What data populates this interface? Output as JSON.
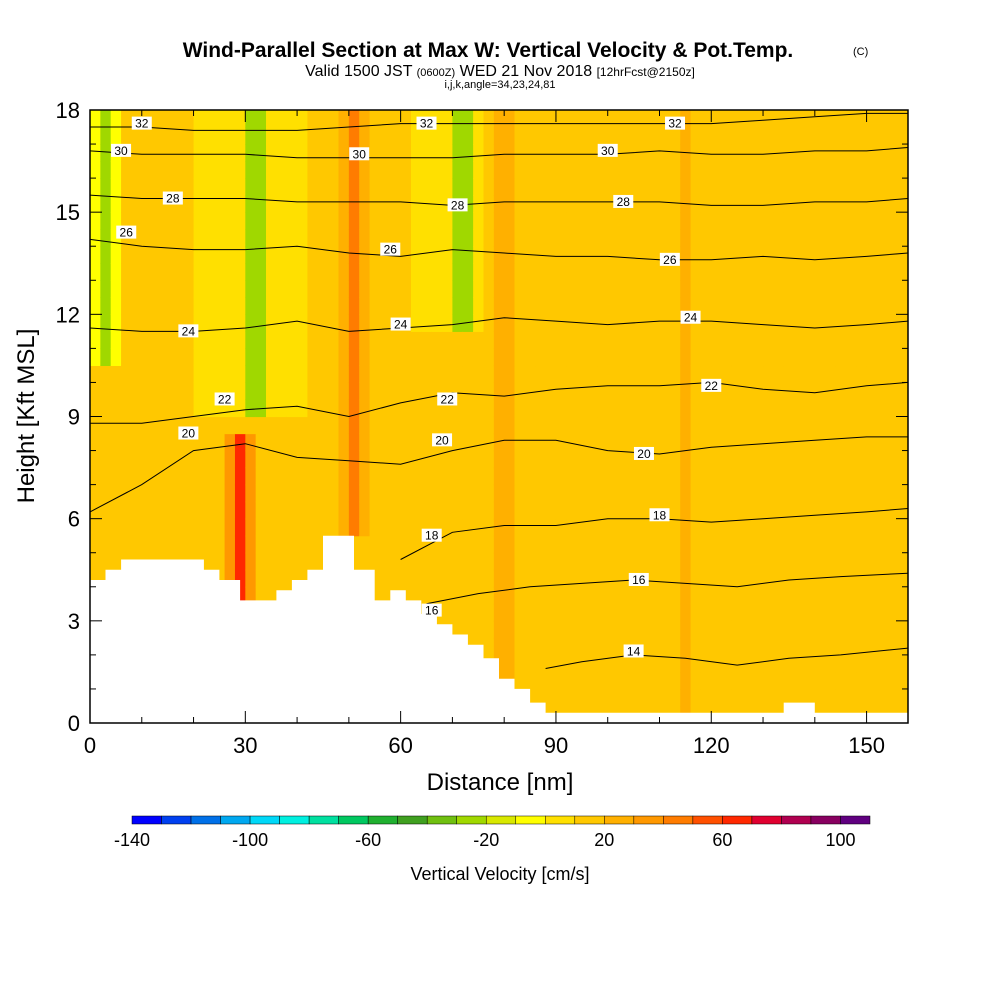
{
  "title": {
    "main": "Wind-Parallel Section at Max W: Vertical Velocity & Pot.Temp.",
    "main_suffix": "(C)",
    "valid_prefix": "Valid 1500 JST",
    "valid_utc": "(0600Z)",
    "valid_date": "WED 21 Nov 2018",
    "forecast": "[12hrFcst@2150z]",
    "indices": "i,j,k,angle=34,23,24,81"
  },
  "chart_data": {
    "type": "heatmap",
    "xlabel": "Distance [nm]",
    "ylabel": "Height [Kft MSL]",
    "xlim": [
      0,
      158
    ],
    "ylim": [
      0,
      18
    ],
    "x_ticks": [
      0,
      30,
      60,
      90,
      120,
      150
    ],
    "x_tick_labels": [
      "0",
      "30",
      "60",
      "90",
      "120",
      "150"
    ],
    "y_ticks": [
      0,
      3,
      6,
      9,
      12,
      15,
      18
    ],
    "y_tick_labels": [
      "0",
      "3",
      "6",
      "9",
      "12",
      "15",
      "18"
    ],
    "colorbar": {
      "title": "Vertical Velocity [cm/s]",
      "min": -140,
      "max": 110,
      "step": 10,
      "tick_values": [
        -140,
        -100,
        -60,
        -20,
        20,
        60,
        100
      ],
      "tick_labels": [
        "-140",
        "-100",
        "-60",
        "-20",
        "20",
        "60",
        "100"
      ],
      "colors": [
        "#0000ff",
        "#0040f0",
        "#0070e8",
        "#00a8f0",
        "#00d8f8",
        "#00f0e0",
        "#00e0a0",
        "#00c860",
        "#20b030",
        "#40a020",
        "#70c010",
        "#a0d800",
        "#d8e800",
        "#ffff00",
        "#ffe000",
        "#ffc800",
        "#ffb000",
        "#ff9800",
        "#ff7c00",
        "#ff5000",
        "#ff2800",
        "#e00030",
        "#b00050",
        "#880060",
        "#600080"
      ]
    },
    "terrain": {
      "x": [
        0,
        3,
        3,
        6,
        6,
        22,
        22,
        25,
        25,
        29,
        29,
        36,
        36,
        39,
        39,
        42,
        42,
        45,
        45,
        51,
        51,
        55,
        55,
        58,
        58,
        61,
        61,
        64,
        64,
        67,
        67,
        70,
        70,
        73,
        73,
        76,
        76,
        79,
        79,
        82,
        82,
        85,
        85,
        88,
        88,
        134,
        134,
        140,
        140,
        158
      ],
      "y": [
        4.2,
        4.2,
        4.5,
        4.5,
        4.8,
        4.8,
        4.5,
        4.5,
        4.2,
        4.2,
        3.6,
        3.6,
        3.9,
        3.9,
        4.2,
        4.2,
        4.5,
        4.5,
        5.5,
        5.5,
        4.5,
        4.5,
        3.6,
        3.6,
        3.9,
        3.9,
        3.6,
        3.6,
        3.2,
        3.2,
        2.9,
        2.9,
        2.6,
        2.6,
        2.3,
        2.3,
        1.9,
        1.9,
        1.3,
        1.3,
        1.0,
        1.0,
        0.6,
        0.6,
        0.3,
        0.3,
        0.6,
        0.6,
        0.3,
        0.3
      ]
    },
    "vertical_velocity": {
      "background": 10,
      "features": [
        {
          "x": 3,
          "ybot": 10.5,
          "ytop": 18,
          "w": -30
        },
        {
          "x": 8,
          "ybot": 5,
          "ytop": 18,
          "w": 20
        },
        {
          "x": 29,
          "ybot": 3.5,
          "ytop": 8.5,
          "w": 60
        },
        {
          "x": 32,
          "ybot": 9,
          "ytop": 18,
          "w": -30
        },
        {
          "x": 51,
          "ybot": 5.5,
          "ytop": 18,
          "w": 45
        },
        {
          "x": 72,
          "ybot": 11.5,
          "ytop": 18,
          "w": -30
        },
        {
          "x": 80,
          "ybot": 0.5,
          "ytop": 18,
          "w": 30
        },
        {
          "x": 88,
          "ybot": 0,
          "ytop": 18,
          "w": 15
        },
        {
          "x": 104,
          "ybot": 4,
          "ytop": 18,
          "w": 15
        },
        {
          "x": 115,
          "ybot": 0,
          "ytop": 18,
          "w": 20
        },
        {
          "x": 126,
          "ybot": 0,
          "ytop": 14,
          "w": 15
        },
        {
          "x": 138,
          "ybot": 1,
          "ytop": 18,
          "w": 20
        },
        {
          "x": 152,
          "ybot": 0,
          "ytop": 18,
          "w": 15
        }
      ]
    },
    "potential_temperature": [
      {
        "value": 14,
        "x": [
          88,
          95,
          105,
          115,
          125,
          135,
          145,
          158
        ],
        "y": [
          1.6,
          1.8,
          2.0,
          1.9,
          1.7,
          1.9,
          2.0,
          2.2
        ],
        "labels": [
          [
            105,
            2.1
          ]
        ]
      },
      {
        "value": 16,
        "x": [
          65,
          75,
          85,
          95,
          105,
          115,
          125,
          135,
          145,
          158
        ],
        "y": [
          3.5,
          3.8,
          4.0,
          4.1,
          4.2,
          4.1,
          4.0,
          4.2,
          4.3,
          4.4
        ],
        "labels": [
          [
            66,
            3.3
          ],
          [
            106,
            4.2
          ]
        ]
      },
      {
        "value": 18,
        "x": [
          60,
          70,
          80,
          90,
          100,
          110,
          120,
          130,
          140,
          150,
          158
        ],
        "y": [
          4.8,
          5.6,
          5.8,
          5.8,
          6.0,
          6.0,
          5.9,
          6.0,
          6.1,
          6.2,
          6.3
        ],
        "labels": [
          [
            66,
            5.5
          ],
          [
            110,
            6.1
          ]
        ]
      },
      {
        "value": 20,
        "x": [
          0,
          10,
          20,
          30,
          40,
          50,
          60,
          70,
          80,
          90,
          100,
          110,
          120,
          130,
          140,
          150,
          158
        ],
        "y": [
          6.2,
          7.0,
          8.0,
          8.2,
          7.8,
          7.7,
          7.6,
          8.0,
          8.3,
          8.3,
          8.0,
          7.9,
          8.1,
          8.2,
          8.3,
          8.4,
          8.4
        ],
        "labels": [
          [
            19,
            8.5
          ],
          [
            68,
            8.3
          ],
          [
            107,
            7.9
          ]
        ]
      },
      {
        "value": 22,
        "x": [
          0,
          10,
          20,
          30,
          40,
          50,
          60,
          70,
          80,
          90,
          100,
          110,
          120,
          130,
          140,
          150,
          158
        ],
        "y": [
          8.8,
          8.8,
          9.0,
          9.2,
          9.3,
          9.0,
          9.4,
          9.7,
          9.6,
          9.8,
          9.9,
          9.9,
          10.0,
          9.8,
          9.7,
          9.9,
          10.0
        ],
        "labels": [
          [
            26,
            9.5
          ],
          [
            69,
            9.5
          ],
          [
            120,
            9.9
          ]
        ]
      },
      {
        "value": 24,
        "x": [
          0,
          10,
          20,
          30,
          40,
          50,
          60,
          70,
          80,
          90,
          100,
          110,
          120,
          130,
          140,
          150,
          158
        ],
        "y": [
          11.6,
          11.5,
          11.5,
          11.6,
          11.8,
          11.5,
          11.6,
          11.7,
          11.9,
          11.8,
          11.7,
          11.8,
          11.8,
          11.7,
          11.6,
          11.7,
          11.8
        ],
        "labels": [
          [
            19,
            11.5
          ],
          [
            60,
            11.7
          ],
          [
            116,
            11.9
          ]
        ]
      },
      {
        "value": 26,
        "x": [
          0,
          10,
          20,
          30,
          40,
          50,
          60,
          70,
          80,
          90,
          100,
          110,
          120,
          130,
          140,
          150,
          158
        ],
        "y": [
          14.2,
          14.0,
          13.9,
          13.9,
          14.0,
          13.8,
          13.7,
          13.9,
          13.8,
          13.7,
          13.7,
          13.6,
          13.6,
          13.7,
          13.6,
          13.7,
          13.8
        ],
        "labels": [
          [
            7,
            14.4
          ],
          [
            58,
            13.9
          ],
          [
            112,
            13.6
          ]
        ]
      },
      {
        "value": 28,
        "x": [
          0,
          10,
          20,
          30,
          40,
          50,
          60,
          70,
          80,
          90,
          100,
          110,
          120,
          130,
          140,
          150,
          158
        ],
        "y": [
          15.5,
          15.4,
          15.4,
          15.4,
          15.3,
          15.3,
          15.3,
          15.2,
          15.3,
          15.3,
          15.3,
          15.3,
          15.2,
          15.2,
          15.3,
          15.3,
          15.4
        ],
        "labels": [
          [
            16,
            15.4
          ],
          [
            71,
            15.2
          ],
          [
            103,
            15.3
          ]
        ]
      },
      {
        "value": 30,
        "x": [
          0,
          10,
          20,
          30,
          40,
          50,
          60,
          70,
          80,
          90,
          100,
          110,
          120,
          130,
          140,
          150,
          158
        ],
        "y": [
          16.8,
          16.7,
          16.7,
          16.7,
          16.6,
          16.6,
          16.6,
          16.6,
          16.7,
          16.7,
          16.7,
          16.8,
          16.7,
          16.7,
          16.8,
          16.8,
          16.9
        ],
        "labels": [
          [
            6,
            16.8
          ],
          [
            52,
            16.7
          ],
          [
            100,
            16.8
          ]
        ]
      },
      {
        "value": 32,
        "x": [
          0,
          10,
          20,
          30,
          40,
          50,
          60,
          70,
          80,
          90,
          100,
          110,
          120,
          130,
          140,
          150,
          158
        ],
        "y": [
          17.5,
          17.5,
          17.4,
          17.4,
          17.4,
          17.5,
          17.6,
          17.6,
          17.6,
          17.6,
          17.6,
          17.6,
          17.6,
          17.7,
          17.8,
          17.9,
          17.9
        ],
        "labels": [
          [
            10,
            17.6
          ],
          [
            65,
            17.6
          ],
          [
            113,
            17.6
          ]
        ]
      }
    ]
  }
}
